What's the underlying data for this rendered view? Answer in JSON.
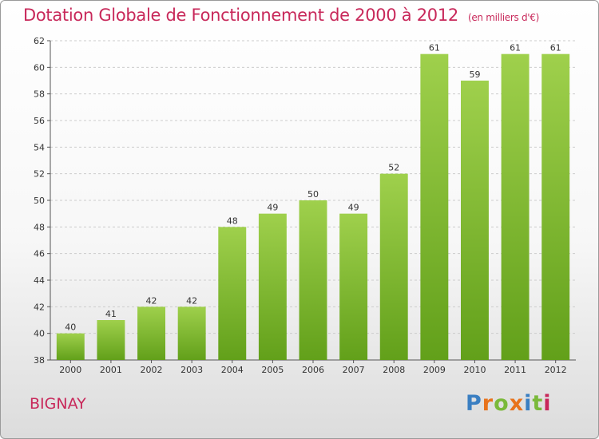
{
  "title": "Dotation Globale de Fonctionnement de 2000 à 2012",
  "unit": "(en milliers d'€)",
  "commune": "BIGNAY",
  "logo": {
    "letters": [
      "P",
      "r",
      "o",
      "x",
      "i",
      "t",
      "i"
    ],
    "colors": [
      "#3a7fc2",
      "#e8731c",
      "#7ab93a",
      "#e8731c",
      "#3a7fc2",
      "#7ab93a",
      "#c8285a"
    ]
  },
  "colors": {
    "title": "#c8285a",
    "bar_top": "#9fd04c",
    "bar_bottom": "#62a01a",
    "grid": "#cccccc",
    "axis": "#555555"
  },
  "chart_data": {
    "type": "bar",
    "categories": [
      "2000",
      "2001",
      "2002",
      "2003",
      "2004",
      "2005",
      "2006",
      "2007",
      "2008",
      "2009",
      "2010",
      "2011",
      "2012"
    ],
    "values": [
      40,
      41,
      42,
      42,
      48,
      49,
      50,
      49,
      52,
      61,
      59,
      61,
      61
    ],
    "ylim": [
      38,
      62
    ],
    "yticks": [
      38,
      40,
      42,
      44,
      46,
      48,
      50,
      52,
      54,
      56,
      58,
      60,
      62
    ],
    "grid": true,
    "data_labels": true
  }
}
